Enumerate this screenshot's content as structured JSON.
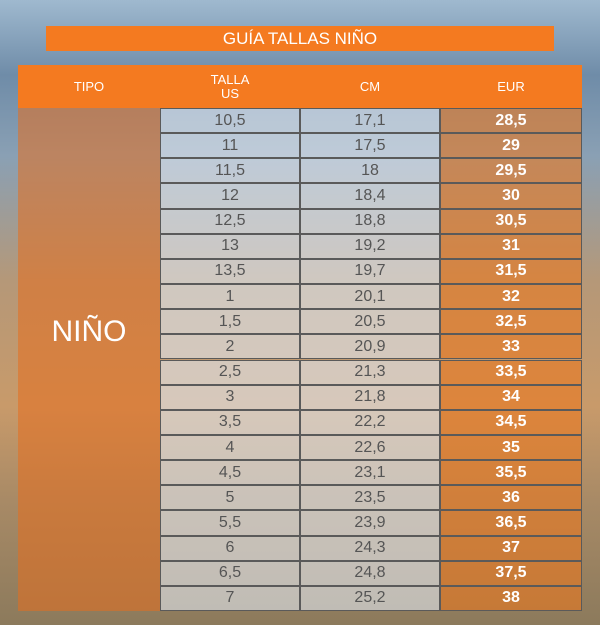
{
  "header": {
    "title": "GUÍA TALLAS NIÑO"
  },
  "table": {
    "columns": [
      "TIPO",
      "TALLA\nUS",
      "CM",
      "EUR"
    ],
    "type_label": "NIÑO",
    "rows": [
      [
        "10,5",
        "17,1",
        "28,5"
      ],
      [
        "11",
        "17,5",
        "29"
      ],
      [
        "11,5",
        "18",
        "29,5"
      ],
      [
        "12",
        "18,4",
        "30"
      ],
      [
        "12,5",
        "18,8",
        "30,5"
      ],
      [
        "13",
        "19,2",
        "31"
      ],
      [
        "13,5",
        "19,7",
        "31,5"
      ],
      [
        "1",
        "20,1",
        "32"
      ],
      [
        "1,5",
        "20,5",
        "32,5"
      ],
      [
        "2",
        "20,9",
        "33"
      ],
      [
        "2,5",
        "21,3",
        "33,5"
      ],
      [
        "3",
        "21,8",
        "34"
      ],
      [
        "3,5",
        "22,2",
        "34,5"
      ],
      [
        "4",
        "22,6",
        "35"
      ],
      [
        "4,5",
        "23,1",
        "35,5"
      ],
      [
        "5",
        "23,5",
        "36"
      ],
      [
        "5,5",
        "23,9",
        "36,5"
      ],
      [
        "6",
        "24,3",
        "37"
      ],
      [
        "6,5",
        "24,8",
        "37,5"
      ],
      [
        "7",
        "25,2",
        "38"
      ]
    ]
  }
}
